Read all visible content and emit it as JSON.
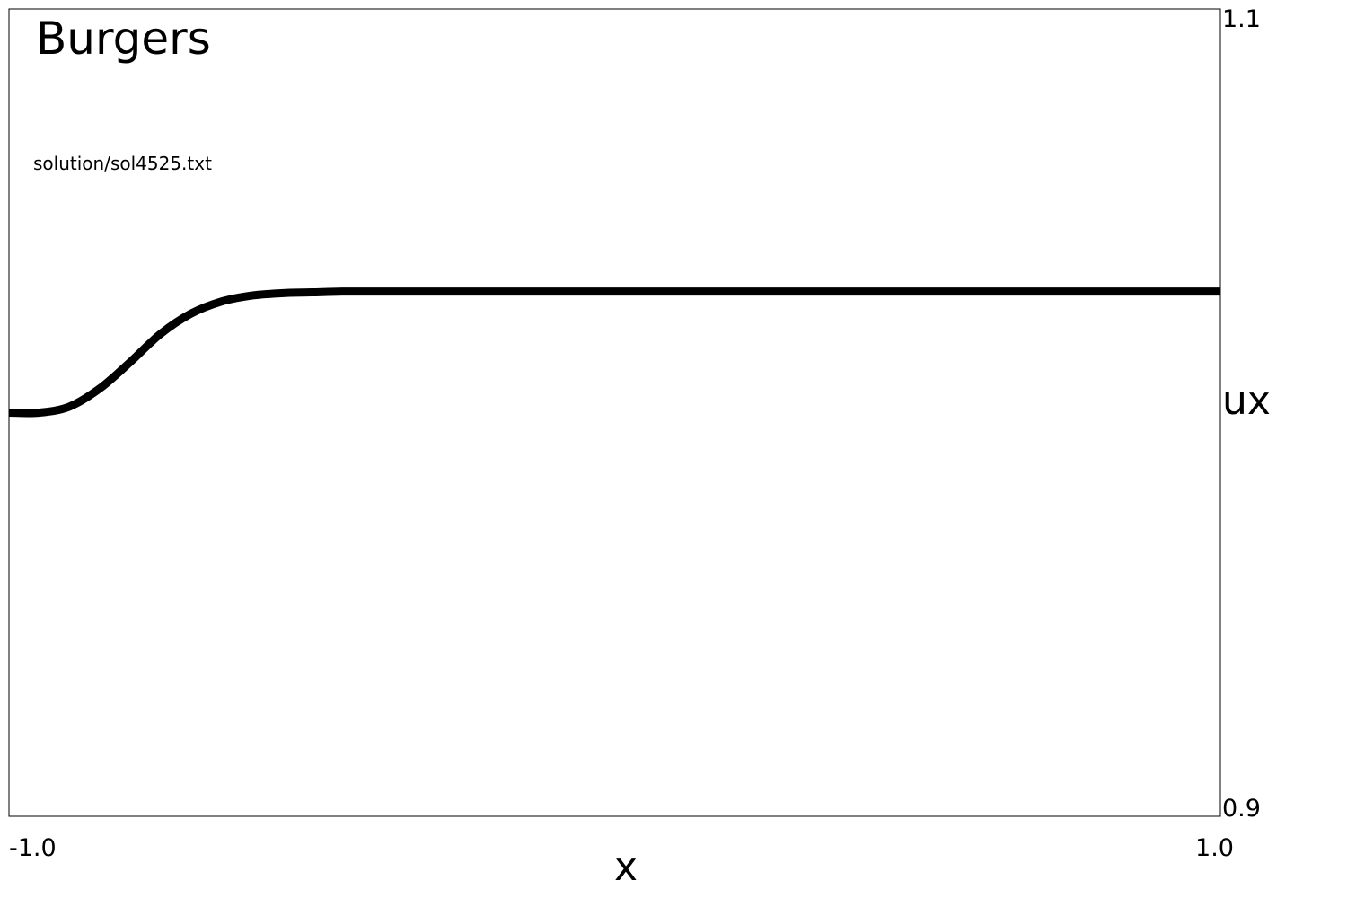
{
  "chart_data": {
    "type": "line",
    "title": "Burgers",
    "subtitle": "solution/sol4525.txt",
    "xlabel": "x",
    "ylabel": "ux",
    "xlim": [
      -1.0,
      1.0
    ],
    "ylim": [
      0.9,
      1.1
    ],
    "x_tick_labels": [
      "-1.0",
      "1.0"
    ],
    "y_tick_labels": [
      "1.1",
      "0.9"
    ],
    "grid": false,
    "legend": "none",
    "line_color": "#000000",
    "series": [
      {
        "x": [
          -1.0,
          -0.95,
          -0.9,
          -0.85,
          -0.8,
          -0.75,
          -0.7,
          -0.65,
          -0.6,
          -0.55,
          -0.5,
          -0.45,
          -0.4,
          -0.3,
          -0.2,
          0.0,
          0.2,
          0.4,
          0.6,
          0.8,
          1.0
        ],
        "values": [
          1.0,
          1.0,
          1.0015,
          1.006,
          1.0125,
          1.0195,
          1.0245,
          1.0275,
          1.029,
          1.0296,
          1.0298,
          1.03,
          1.03,
          1.03,
          1.03,
          1.03,
          1.03,
          1.03,
          1.03,
          1.03,
          1.03
        ]
      }
    ]
  }
}
